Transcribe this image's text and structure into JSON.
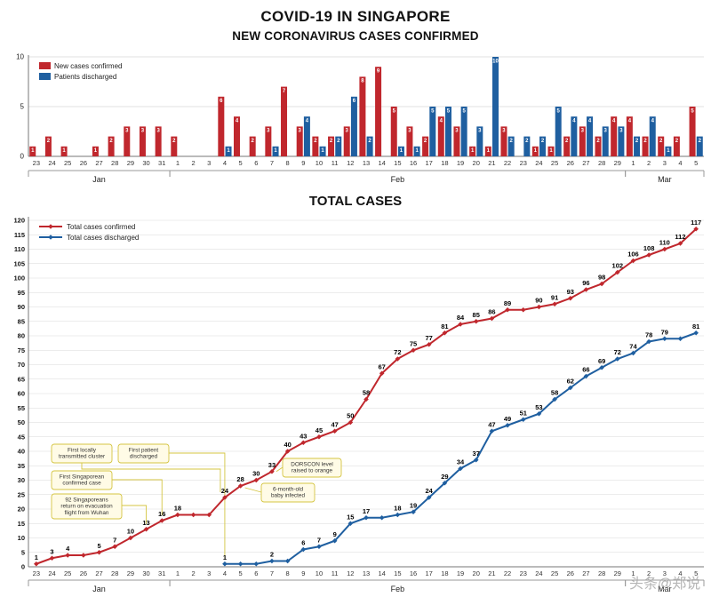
{
  "header": {
    "title": "COVID-19 IN SINGAPORE",
    "subtitle": "NEW CORONAVIRUS CASES CONFIRMED"
  },
  "total_title": "TOTAL CASES",
  "watermark": "头条@郑说",
  "colors": {
    "confirmed": "#c0272d",
    "discharged": "#1f5fa0",
    "grid": "#d9d9d9",
    "axis": "#777777",
    "annotation_fill": "#fffbe6",
    "annotation_border": "#d4c542"
  },
  "days": [
    "23",
    "24",
    "25",
    "26",
    "27",
    "28",
    "29",
    "30",
    "31",
    "1",
    "2",
    "3",
    "4",
    "5",
    "6",
    "7",
    "8",
    "9",
    "10",
    "11",
    "12",
    "13",
    "14",
    "15",
    "16",
    "17",
    "18",
    "19",
    "20",
    "21",
    "22",
    "23",
    "24",
    "25",
    "26",
    "27",
    "28",
    "29",
    "1",
    "2",
    "3",
    "4",
    "5"
  ],
  "months": [
    {
      "label": "Jan",
      "start": 0,
      "end": 9
    },
    {
      "label": "Feb",
      "start": 9,
      "end": 38
    },
    {
      "label": "Mar",
      "start": 38,
      "end": 43
    }
  ],
  "chart_data": [
    {
      "type": "bar",
      "title": "NEW CORONAVIRUS CASES CONFIRMED",
      "ylim": [
        0,
        10
      ],
      "yticks": [
        0,
        5,
        10
      ],
      "legend_position": "top-left",
      "series": [
        {
          "name": "New cases confirmed",
          "color": "#c0272d",
          "values": [
            1,
            2,
            1,
            0,
            1,
            2,
            3,
            3,
            3,
            2,
            0,
            0,
            6,
            4,
            2,
            3,
            7,
            3,
            2,
            2,
            3,
            8,
            9,
            5,
            3,
            2,
            4,
            3,
            1,
            1,
            3,
            0,
            1,
            1,
            2,
            3,
            2,
            4,
            4,
            2,
            2,
            2,
            5
          ]
        },
        {
          "name": "Patients discharged",
          "color": "#1f5fa0",
          "values": [
            0,
            0,
            0,
            0,
            0,
            0,
            0,
            0,
            0,
            0,
            0,
            0,
            1,
            0,
            0,
            1,
            0,
            4,
            1,
            2,
            6,
            2,
            0,
            1,
            1,
            5,
            5,
            5,
            3,
            10,
            2,
            2,
            2,
            5,
            4,
            4,
            3,
            3,
            2,
            4,
            1,
            0,
            2
          ]
        }
      ]
    },
    {
      "type": "line",
      "title": "TOTAL CASES",
      "ylim": [
        0,
        120
      ],
      "ytick_step": 5,
      "legend_position": "top-left",
      "series": [
        {
          "name": "Total cases confirmed",
          "color": "#c0272d",
          "values": [
            1,
            3,
            4,
            4,
            5,
            7,
            10,
            13,
            16,
            18,
            18,
            18,
            24,
            28,
            30,
            33,
            40,
            43,
            45,
            47,
            50,
            58,
            67,
            72,
            75,
            77,
            81,
            84,
            85,
            86,
            89,
            89,
            90,
            91,
            93,
            96,
            98,
            102,
            106,
            108,
            110,
            112,
            117
          ]
        },
        {
          "name": "Total cases discharged",
          "color": "#1f5fa0",
          "values": [
            null,
            null,
            null,
            null,
            null,
            null,
            null,
            null,
            null,
            null,
            null,
            null,
            1,
            1,
            1,
            2,
            2,
            6,
            7,
            9,
            15,
            17,
            17,
            18,
            19,
            24,
            29,
            34,
            37,
            47,
            49,
            51,
            53,
            58,
            62,
            66,
            69,
            72,
            74,
            78,
            79,
            79,
            81
          ]
        }
      ],
      "annotations": [
        {
          "lines": [
            "First locally",
            "transmitted cluster"
          ]
        },
        {
          "lines": [
            "First patient",
            "discharged"
          ]
        },
        {
          "lines": [
            "First Singaporean",
            "confirmed case"
          ]
        },
        {
          "lines": [
            "92 Singaporeans",
            "return on evacuation",
            "flight from Wuhan"
          ]
        },
        {
          "lines": [
            "DORSCON level",
            "raised to orange"
          ]
        },
        {
          "lines": [
            "6-month-old",
            "baby infected"
          ]
        }
      ]
    }
  ]
}
